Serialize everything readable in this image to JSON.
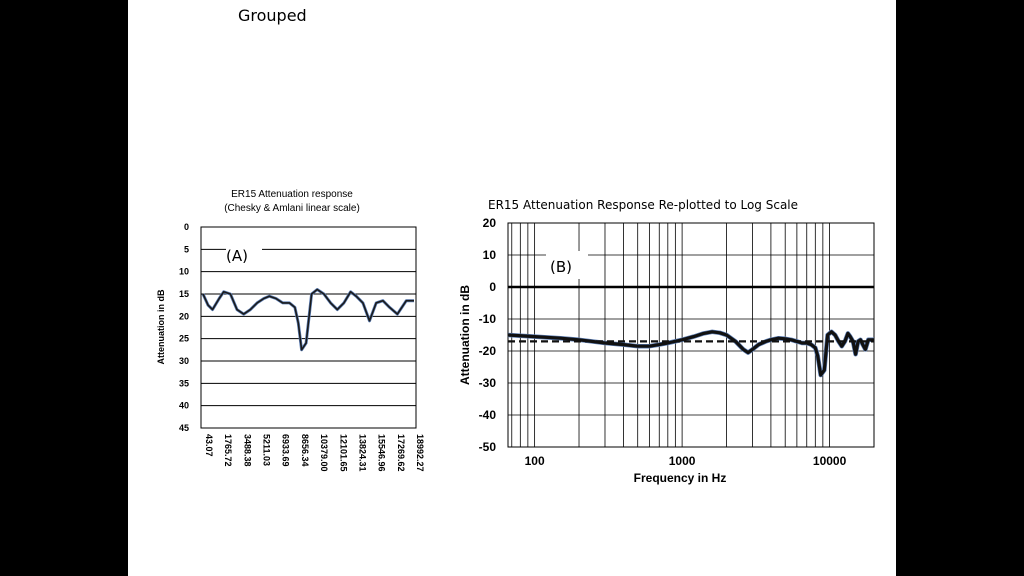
{
  "slide": {
    "title": "Grouped"
  },
  "chart_data": [
    {
      "type": "line",
      "title": "ER15 Attenuation response",
      "subtitle": "(Chesky & Amlani linear scale)",
      "panel_label": "(A)",
      "xlabel": "",
      "ylabel": "Attenuation in dB",
      "ylim": [
        45,
        0
      ],
      "y_ticks": [
        0,
        5,
        10,
        15,
        20,
        25,
        30,
        35,
        40,
        45
      ],
      "x_tick_labels": [
        "43.07",
        "1765.72",
        "3488.38",
        "5211.03",
        "6933.69",
        "8656.34",
        "10379.00",
        "12101.65",
        "13824.31",
        "15546.96",
        "17269.62",
        "18992.27"
      ],
      "xlim": [
        43.07,
        18992.27
      ],
      "grid": "horizontal",
      "series": [
        {
          "color": "#1a1a1a",
          "x": [
            43.07,
            500,
            900,
            1500,
            1900,
            2500,
            3100,
            3700,
            4300,
            4900,
            5500,
            6000,
            6600,
            7200,
            7800,
            8300,
            8600,
            8900,
            9300,
            9800,
            10300,
            10900,
            11500,
            12100,
            12700,
            13300,
            13800,
            14400,
            15000,
            15600,
            16200,
            16800,
            17500,
            18300,
            18992.27
          ],
          "values": [
            15,
            17.5,
            18.5,
            16,
            14.5,
            15,
            18.5,
            19.5,
            18.5,
            17,
            16,
            15.5,
            16,
            17,
            17,
            18,
            21.5,
            27.5,
            26,
            15,
            14,
            15,
            17,
            18.5,
            17,
            14.5,
            15.5,
            17,
            21,
            17,
            16.5,
            18,
            19.5,
            16.5,
            16.5
          ]
        }
      ]
    },
    {
      "type": "line",
      "title": "ER15 Attenuation Response Re-plotted to Log Scale",
      "panel_label": "(B)",
      "xlabel": "Frequency in Hz",
      "ylabel": "Attenuation in dB",
      "xscale": "log",
      "xlim": [
        66,
        20000
      ],
      "ylim": [
        -50,
        20
      ],
      "y_ticks": [
        20,
        10,
        0,
        -10,
        -20,
        -30,
        -40,
        -50
      ],
      "x_tick_labels": [
        "100",
        "1000",
        "10000"
      ],
      "x_tick_values": [
        100,
        1000,
        10000
      ],
      "grid": "both",
      "series": [
        {
          "style": "solid",
          "color": "#111111",
          "x": [
            66,
            100,
            150,
            200,
            300,
            400,
            500,
            600,
            700,
            800,
            1000,
            1200,
            1400,
            1600,
            1800,
            2000,
            2300,
            2600,
            2800,
            3000,
            3300,
            3700,
            4000,
            4500,
            5000,
            5500,
            6000,
            6500,
            7000,
            7500,
            8000,
            8300,
            8700,
            9200,
            9700,
            10300,
            10900,
            11500,
            12100,
            12700,
            13300,
            13800,
            14400,
            15000,
            15600,
            16200,
            16800,
            17500,
            18300,
            19000,
            20000
          ],
          "values": [
            -15,
            -15.5,
            -16,
            -16.5,
            -17.5,
            -18,
            -18.5,
            -18.5,
            -18,
            -17.5,
            -16.5,
            -15.5,
            -14.5,
            -14,
            -14.3,
            -15,
            -17,
            -19.5,
            -20.5,
            -19.5,
            -18,
            -17,
            -16.5,
            -16,
            -16.2,
            -16.5,
            -17,
            -17.5,
            -17.5,
            -18,
            -19,
            -21.5,
            -27.5,
            -26,
            -15,
            -14,
            -15,
            -17,
            -18.5,
            -17,
            -14.5,
            -15.5,
            -17,
            -21,
            -17,
            -16.5,
            -18,
            -19.5,
            -16.5,
            -16.5,
            -16.5
          ]
        },
        {
          "style": "dashed",
          "color": "#111111",
          "x": [
            66,
            20000
          ],
          "values": [
            -17,
            -17
          ]
        },
        {
          "style": "solid",
          "color": "#000000",
          "x": [
            66,
            20000
          ],
          "values": [
            0,
            0
          ]
        }
      ]
    }
  ]
}
